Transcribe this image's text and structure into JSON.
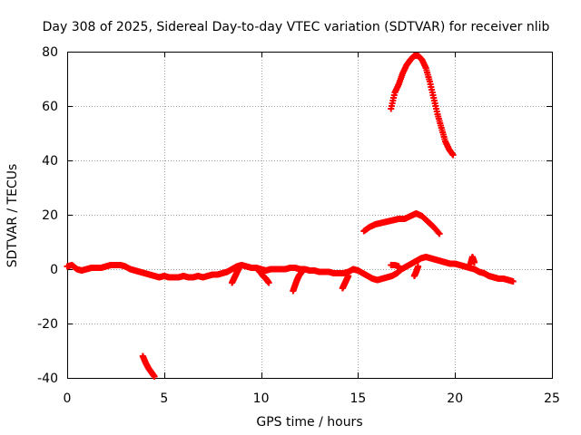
{
  "chart_data": {
    "type": "scatter",
    "title": "Day 308 of 2025, Sidereal Day-to-day VTEC variation (SDTVAR) for receiver nlib",
    "xlabel": "GPS time / hours",
    "ylabel": "SDTVAR / TECUs",
    "xlim": [
      0,
      25
    ],
    "ylim": [
      -40,
      80
    ],
    "xticks": [
      0,
      5,
      10,
      15,
      20,
      25
    ],
    "yticks": [
      -40,
      -20,
      0,
      20,
      40,
      60,
      80
    ],
    "grid": true,
    "marker": "plus",
    "color": "#ff0000",
    "series": [
      {
        "name": "main",
        "x": [
          0.0,
          0.25,
          0.5,
          0.75,
          1.0,
          1.25,
          1.5,
          1.75,
          2.0,
          2.25,
          2.5,
          2.75,
          3.0,
          3.25,
          3.5,
          3.75,
          4.0,
          4.25,
          4.5,
          4.75,
          5.0,
          5.25,
          5.5,
          5.75,
          6.0,
          6.25,
          6.5,
          6.75,
          7.0,
          7.25,
          7.5,
          7.75,
          8.0,
          8.25,
          8.5,
          8.75,
          9.0,
          9.25,
          9.5,
          9.75,
          10.0,
          10.25,
          10.5,
          10.75,
          11.0,
          11.25,
          11.5,
          11.75,
          12.0,
          12.25,
          12.5,
          12.75,
          13.0,
          13.25,
          13.5,
          13.75,
          14.0,
          14.25,
          14.5,
          14.75,
          15.0,
          15.25,
          15.5,
          15.75,
          16.0,
          16.25,
          16.5,
          16.75,
          17.0,
          17.25,
          17.5,
          17.75,
          18.0,
          18.25,
          18.5,
          18.75,
          19.0,
          19.25,
          19.5,
          19.75,
          20.0,
          20.25,
          20.5,
          20.75,
          21.0,
          21.25,
          21.5,
          21.75,
          22.0,
          22.25,
          22.5,
          22.75,
          23.0
        ],
        "y": [
          1,
          1.5,
          0,
          -0.5,
          0,
          0.5,
          0.5,
          0.5,
          1,
          1.5,
          1.5,
          1.5,
          1,
          0,
          -0.5,
          -1,
          -1.5,
          -2,
          -2.5,
          -3,
          -2.5,
          -3,
          -3,
          -3,
          -2.5,
          -3,
          -3,
          -2.5,
          -3,
          -2.5,
          -2,
          -2,
          -1.5,
          -1,
          0,
          1,
          1.5,
          1,
          0.5,
          0.5,
          0,
          -0.5,
          0,
          0,
          0,
          0,
          0.5,
          0.5,
          0,
          0,
          -0.5,
          -0.5,
          -1,
          -1,
          -1,
          -1.5,
          -1.5,
          -1.5,
          -1,
          0,
          -0.5,
          -1.5,
          -2.5,
          -3.5,
          -4,
          -3.5,
          -3,
          -2.5,
          -1.5,
          0,
          1,
          2,
          3,
          4,
          4.5,
          4,
          3.5,
          3,
          2.5,
          2,
          2,
          1.5,
          1,
          0.5,
          0,
          -1,
          -1.5,
          -2.5,
          -3,
          -3.5,
          -3.5,
          -4,
          -4.5
        ]
      },
      {
        "name": "mid",
        "x": [
          15.3,
          15.6,
          15.9,
          16.2,
          16.5,
          16.8,
          17.1,
          17.4,
          17.7,
          18.0,
          18.3,
          18.6,
          18.9,
          19.2
        ],
        "y": [
          14,
          15.5,
          16.5,
          17,
          17.5,
          18,
          18.5,
          18.5,
          19.5,
          20.5,
          19.5,
          17.5,
          15.5,
          13
        ]
      },
      {
        "name": "upper",
        "x": [
          16.7,
          16.9,
          17.1,
          17.3,
          17.5,
          17.7,
          17.9,
          18.1,
          18.3,
          18.5,
          18.7,
          18.9,
          19.1,
          19.3,
          19.5,
          19.7,
          19.9
        ],
        "y": [
          59,
          65,
          68,
          72,
          75,
          77,
          78.5,
          78.5,
          77,
          74,
          69,
          63,
          57,
          52,
          47,
          44,
          42
        ]
      },
      {
        "name": "lower",
        "x": [
          3.9,
          4.05,
          4.2,
          4.35,
          4.5
        ],
        "y": [
          -32,
          -34.5,
          -36.5,
          -38,
          -39.5
        ]
      },
      {
        "name": "spur-8.8",
        "x": [
          8.5,
          8.6,
          8.7,
          8.8,
          8.9
        ],
        "y": [
          -5,
          -3.5,
          -2,
          -0.5,
          1
        ]
      },
      {
        "name": "spur-9.9",
        "x": [
          9.8,
          9.95,
          10.1,
          10.25,
          10.4
        ],
        "y": [
          0,
          -1,
          -2.5,
          -3.5,
          -5
        ]
      },
      {
        "name": "spur-11.8",
        "x": [
          11.65,
          11.75,
          11.85,
          11.95,
          12.1
        ],
        "y": [
          -8,
          -6,
          -4,
          -2.5,
          -1
        ]
      },
      {
        "name": "spur-14.3",
        "x": [
          14.2,
          14.3,
          14.4,
          14.5
        ],
        "y": [
          -7,
          -5.5,
          -4,
          -2.5
        ]
      },
      {
        "name": "spur-17",
        "x": [
          16.7,
          16.9,
          17.1
        ],
        "y": [
          1.5,
          1.5,
          1
        ]
      },
      {
        "name": "spur-17.9",
        "x": [
          17.9,
          18.0,
          18.1
        ],
        "y": [
          -2.5,
          -1,
          1
        ]
      },
      {
        "name": "spur-20.9",
        "x": [
          20.8,
          20.9,
          21.0
        ],
        "y": [
          2,
          4.5,
          2.5
        ]
      }
    ]
  }
}
